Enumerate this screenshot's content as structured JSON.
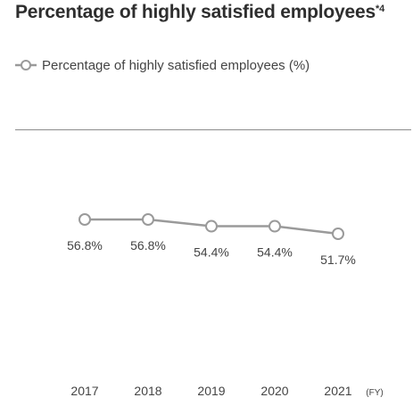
{
  "title": {
    "text": "Percentage of highly satisfied employees",
    "superscript": "*4"
  },
  "colors": {
    "line": "#9a9a9a",
    "marker_fill": "#ffffff",
    "text": "#444444",
    "divider": "#8c8c8c"
  },
  "chart_data": {
    "type": "line",
    "title": "Percentage of highly satisfied employees",
    "categories": [
      "2017",
      "2018",
      "2019",
      "2020",
      "2021"
    ],
    "series": [
      {
        "name": "Percentage of highly satisfied employees (%)",
        "values": [
          56.8,
          56.8,
          54.4,
          54.4,
          51.7
        ],
        "labels": [
          "56.8%",
          "56.8%",
          "54.4%",
          "54.4%",
          "51.7%"
        ]
      }
    ],
    "xlabel": "",
    "x_unit": "(FY)",
    "ylabel": "",
    "ylim": [
      0,
      100
    ],
    "grid": false,
    "legend_position": "top-left",
    "marker": "hollow-circle"
  }
}
